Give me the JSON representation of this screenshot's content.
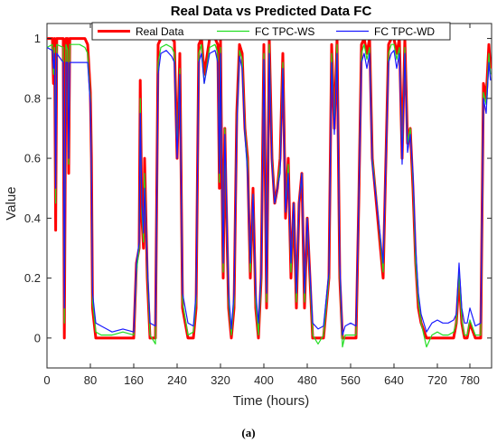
{
  "chart_data": {
    "type": "line",
    "title": "Real Data vs Predicted Data FC",
    "xlabel": "Time (hours)",
    "ylabel": "Value",
    "xlim": [
      0,
      820
    ],
    "ylim": [
      -0.1,
      1.05
    ],
    "xticks": [
      0,
      80,
      160,
      240,
      320,
      400,
      480,
      560,
      640,
      720,
      780
    ],
    "yticks": [
      0,
      0.2,
      0.4,
      0.6,
      0.8,
      1
    ],
    "grid": false,
    "legend_position": "top",
    "caption": "(a)",
    "series": [
      {
        "name": "Real Data",
        "color": "#ff0000",
        "x": [
          0,
          10,
          12,
          14,
          16,
          18,
          30,
          32,
          35,
          38,
          40,
          42,
          60,
          70,
          75,
          80,
          82,
          84,
          90,
          100,
          110,
          120,
          140,
          160,
          165,
          170,
          172,
          175,
          178,
          180,
          185,
          190,
          200,
          205,
          210,
          220,
          230,
          235,
          240,
          245,
          250,
          260,
          270,
          275,
          280,
          285,
          290,
          300,
          310,
          315,
          318,
          320,
          322,
          325,
          328,
          330,
          335,
          340,
          345,
          350,
          355,
          360,
          365,
          370,
          375,
          380,
          385,
          390,
          395,
          400,
          405,
          410,
          415,
          420,
          425,
          430,
          435,
          440,
          445,
          450,
          455,
          460,
          465,
          470,
          475,
          480,
          485,
          490,
          500,
          510,
          520,
          525,
          530,
          535,
          540,
          545,
          550,
          560,
          570,
          575,
          580,
          585,
          590,
          595,
          600,
          610,
          620,
          630,
          635,
          640,
          645,
          650,
          655,
          660,
          665,
          670,
          675,
          680,
          685,
          690,
          700,
          710,
          720,
          730,
          740,
          750,
          755,
          760,
          765,
          770,
          775,
          780,
          790,
          800,
          805,
          810,
          815,
          818
        ],
        "y": [
          1,
          1,
          0.85,
          1,
          0.36,
          1,
          1,
          0,
          1,
          1,
          0.55,
          1,
          1,
          1,
          0.98,
          0.82,
          0.6,
          0.1,
          0,
          0,
          0,
          0,
          0,
          0,
          0.25,
          0.3,
          0.86,
          0.4,
          0.3,
          0.6,
          0.2,
          0,
          0,
          0.98,
          1,
          1,
          1,
          0.99,
          0.6,
          0.95,
          0.1,
          0,
          0,
          0.1,
          0.98,
          1,
          0.88,
          1,
          1,
          0.98,
          0.5,
          1,
          0.65,
          0.2,
          0.7,
          0.5,
          0.1,
          0,
          0.1,
          0.75,
          0.98,
          0.95,
          0.7,
          0.6,
          0.2,
          0.5,
          0.1,
          0,
          0.2,
          0.98,
          0.1,
          1,
          0.6,
          0.45,
          0.5,
          0.6,
          0.95,
          0.4,
          0.6,
          0.2,
          0.45,
          0.1,
          0.45,
          0.55,
          0.1,
          0.4,
          0.2,
          0,
          0,
          0,
          0.2,
          0.98,
          0.7,
          1,
          0.2,
          0,
          0,
          0,
          0,
          0.45,
          0.98,
          1,
          0.95,
          1,
          0.6,
          0.4,
          0.2,
          0.98,
          1,
          1,
          0.95,
          1,
          0.6,
          1,
          0.65,
          0.7,
          0.5,
          0.25,
          0.1,
          0.05,
          0,
          0,
          0,
          0,
          0,
          0,
          0.05,
          0.2,
          0.05,
          0,
          0,
          0.05,
          0,
          0,
          0.85,
          0.8,
          0.98,
          0.9
        ]
      },
      {
        "name": "FC TPC-WS",
        "color": "#22dd22",
        "x": [
          0,
          10,
          12,
          14,
          16,
          18,
          30,
          32,
          35,
          38,
          40,
          42,
          60,
          70,
          75,
          80,
          82,
          84,
          90,
          100,
          110,
          120,
          140,
          160,
          165,
          170,
          172,
          175,
          178,
          180,
          185,
          190,
          200,
          205,
          210,
          220,
          230,
          235,
          240,
          245,
          250,
          260,
          270,
          275,
          280,
          285,
          290,
          300,
          310,
          315,
          318,
          320,
          322,
          325,
          328,
          330,
          335,
          340,
          345,
          350,
          355,
          360,
          365,
          370,
          375,
          380,
          385,
          390,
          395,
          400,
          405,
          410,
          415,
          420,
          425,
          430,
          435,
          440,
          445,
          450,
          455,
          460,
          465,
          470,
          475,
          480,
          485,
          490,
          500,
          510,
          520,
          525,
          530,
          535,
          540,
          545,
          550,
          560,
          570,
          575,
          580,
          585,
          590,
          595,
          600,
          610,
          620,
          630,
          635,
          640,
          645,
          650,
          655,
          660,
          665,
          670,
          675,
          680,
          685,
          690,
          700,
          710,
          720,
          730,
          740,
          750,
          755,
          760,
          765,
          770,
          775,
          780,
          790,
          800,
          805,
          810,
          815,
          818
        ],
        "y": [
          0.97,
          0.98,
          0.88,
          0.97,
          0.45,
          0.98,
          0.97,
          0.05,
          0.98,
          0.96,
          0.58,
          0.98,
          0.98,
          0.97,
          0.95,
          0.8,
          0.58,
          0.12,
          0.02,
          0.01,
          0.01,
          0.01,
          0.02,
          0.01,
          0.22,
          0.3,
          0.8,
          0.42,
          0.32,
          0.55,
          0.22,
          0.01,
          -0.02,
          0.92,
          0.97,
          0.98,
          0.97,
          0.95,
          0.62,
          0.9,
          0.12,
          0.01,
          0.02,
          0.12,
          0.95,
          0.98,
          0.85,
          0.97,
          0.98,
          0.95,
          0.52,
          0.97,
          0.65,
          0.22,
          0.7,
          0.52,
          0.12,
          0.01,
          0.12,
          0.72,
          0.96,
          0.93,
          0.7,
          0.58,
          0.22,
          0.48,
          0.12,
          0.01,
          0.2,
          0.95,
          0.12,
          0.98,
          0.6,
          0.45,
          0.5,
          0.58,
          0.92,
          0.42,
          0.58,
          0.22,
          0.45,
          0.12,
          0.45,
          0.55,
          0.12,
          0.4,
          0.2,
          0.01,
          -0.02,
          0.01,
          0.2,
          0.95,
          0.7,
          0.98,
          0.22,
          -0.03,
          0.01,
          0.01,
          0.01,
          0.45,
          0.95,
          0.98,
          0.93,
          0.97,
          0.6,
          0.42,
          0.22,
          0.95,
          0.98,
          0.98,
          0.93,
          0.97,
          0.6,
          0.97,
          0.65,
          0.7,
          0.52,
          0.25,
          0.12,
          0.05,
          -0.03,
          0.01,
          0.02,
          0.01,
          0.01,
          0.02,
          0.05,
          0.22,
          0.06,
          0.01,
          0.01,
          0.06,
          0.01,
          0.01,
          0.82,
          0.78,
          0.95,
          0.88
        ]
      },
      {
        "name": "FC TPC-WD",
        "color": "#1a1aff",
        "x": [
          0,
          10,
          12,
          14,
          16,
          18,
          30,
          32,
          35,
          38,
          40,
          42,
          60,
          70,
          75,
          80,
          82,
          84,
          90,
          100,
          110,
          120,
          140,
          160,
          165,
          170,
          172,
          175,
          178,
          180,
          185,
          190,
          200,
          205,
          210,
          220,
          230,
          235,
          240,
          245,
          250,
          260,
          270,
          275,
          280,
          285,
          290,
          300,
          310,
          315,
          318,
          320,
          322,
          325,
          328,
          330,
          335,
          340,
          345,
          350,
          355,
          360,
          365,
          370,
          375,
          380,
          385,
          390,
          395,
          400,
          405,
          410,
          415,
          420,
          425,
          430,
          435,
          440,
          445,
          450,
          455,
          460,
          465,
          470,
          475,
          480,
          485,
          490,
          500,
          510,
          520,
          525,
          530,
          535,
          540,
          545,
          550,
          560,
          570,
          575,
          580,
          585,
          590,
          595,
          600,
          610,
          620,
          630,
          635,
          640,
          645,
          650,
          655,
          660,
          665,
          670,
          675,
          680,
          685,
          690,
          700,
          710,
          720,
          730,
          740,
          750,
          755,
          760,
          765,
          770,
          775,
          780,
          790,
          800,
          805,
          810,
          815,
          818
        ],
        "y": [
          0.97,
          0.96,
          0.9,
          0.95,
          0.5,
          0.95,
          0.92,
          0.1,
          0.92,
          0.92,
          0.6,
          0.92,
          0.92,
          0.92,
          0.92,
          0.78,
          0.55,
          0.15,
          0.05,
          0.04,
          0.03,
          0.02,
          0.03,
          0.02,
          0.25,
          0.32,
          0.75,
          0.45,
          0.35,
          0.5,
          0.25,
          0.05,
          0.04,
          0.88,
          0.95,
          0.96,
          0.94,
          0.92,
          0.6,
          0.88,
          0.15,
          0.05,
          0.04,
          0.15,
          0.92,
          0.95,
          0.85,
          0.95,
          0.96,
          0.92,
          0.55,
          0.95,
          0.62,
          0.25,
          0.68,
          0.55,
          0.15,
          0.03,
          0.15,
          0.7,
          0.94,
          0.9,
          0.68,
          0.55,
          0.25,
          0.48,
          0.15,
          0.05,
          0.22,
          0.93,
          0.15,
          0.95,
          0.58,
          0.45,
          0.5,
          0.55,
          0.9,
          0.42,
          0.55,
          0.25,
          0.45,
          0.15,
          0.45,
          0.55,
          0.15,
          0.4,
          0.22,
          0.05,
          0.03,
          0.04,
          0.22,
          0.92,
          0.68,
          0.95,
          0.25,
          0.01,
          0.04,
          0.05,
          0.04,
          0.45,
          0.92,
          0.95,
          0.9,
          0.95,
          0.58,
          0.42,
          0.25,
          0.92,
          0.95,
          0.96,
          0.9,
          0.95,
          0.58,
          0.95,
          0.62,
          0.68,
          0.55,
          0.3,
          0.15,
          0.08,
          0.02,
          0.05,
          0.06,
          0.05,
          0.05,
          0.06,
          0.08,
          0.25,
          0.1,
          0.05,
          0.05,
          0.1,
          0.04,
          0.05,
          0.8,
          0.75,
          0.92,
          0.86
        ]
      }
    ]
  }
}
